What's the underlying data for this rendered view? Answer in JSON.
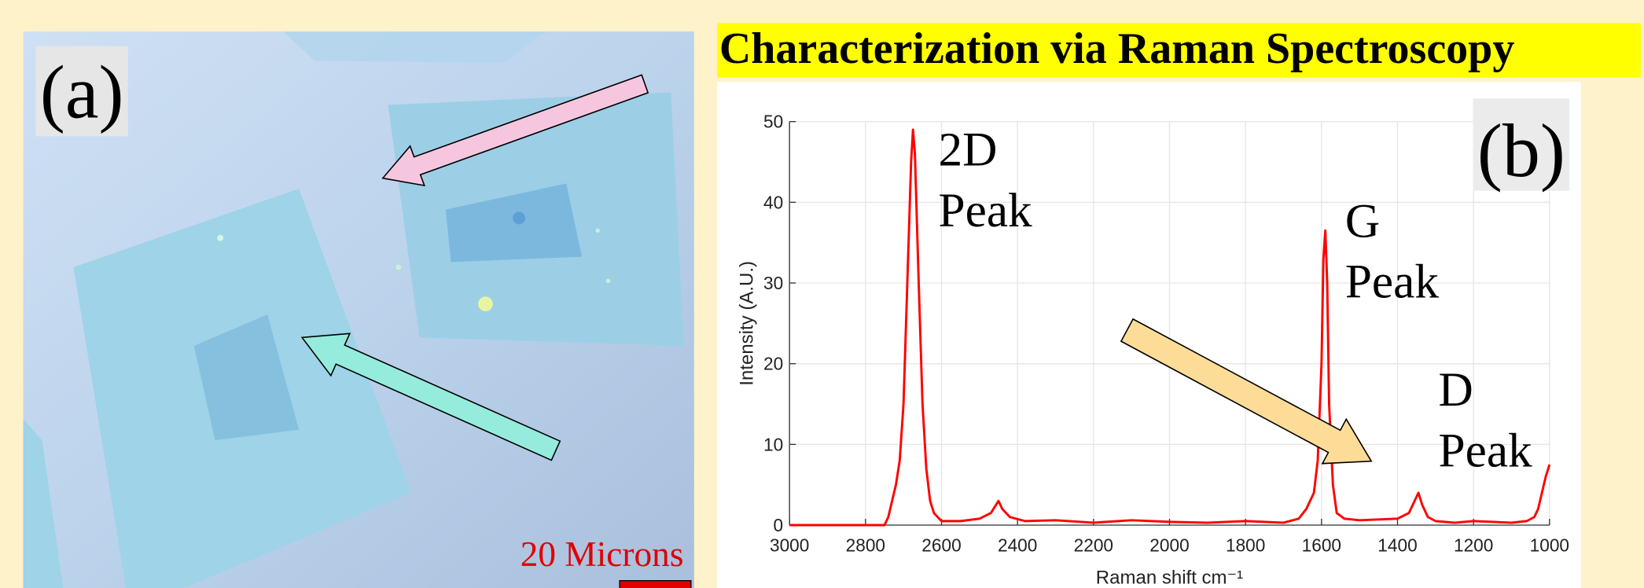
{
  "panel_a": {
    "label": "(a)",
    "scale_label": "20 Microns"
  },
  "chart_data": {
    "type": "line",
    "title": "Characterization via Raman Spectroscopy",
    "panel_label": "(b)",
    "xlabel": "Raman shift cm⁻¹",
    "ylabel": "Intensity (A.U.)",
    "annotations": [
      [
        "2D",
        "Peak"
      ],
      [
        "G",
        "Peak"
      ],
      [
        "D",
        "Peak"
      ]
    ],
    "color": "#ff0000",
    "grid": true,
    "xlim": [
      3000,
      1000
    ],
    "ylim": [
      0,
      50
    ],
    "xticks": [
      3000,
      2800,
      2600,
      2400,
      2200,
      2000,
      1800,
      1600,
      1400,
      1200,
      1000
    ],
    "yticks": [
      0,
      10,
      20,
      30,
      40,
      50
    ],
    "x": [
      3000,
      2900,
      2800,
      2750,
      2740,
      2720,
      2710,
      2700,
      2690,
      2680,
      2675,
      2670,
      2660,
      2650,
      2640,
      2630,
      2620,
      2600,
      2550,
      2500,
      2470,
      2450,
      2440,
      2420,
      2380,
      2300,
      2200,
      2100,
      2000,
      1900,
      1800,
      1700,
      1660,
      1640,
      1620,
      1610,
      1600,
      1595,
      1590,
      1585,
      1580,
      1570,
      1560,
      1540,
      1500,
      1400,
      1370,
      1355,
      1345,
      1335,
      1320,
      1300,
      1250,
      1200,
      1100,
      1060,
      1040,
      1030,
      1020,
      1010,
      1000
    ],
    "values": [
      0,
      0,
      0,
      0,
      1,
      5,
      8,
      15,
      30,
      45,
      49,
      46,
      30,
      15,
      7,
      3,
      1.5,
      0.5,
      0.5,
      0.8,
      1.5,
      3,
      2,
      1,
      0.5,
      0.6,
      0.3,
      0.6,
      0.4,
      0.3,
      0.5,
      0.3,
      0.8,
      2,
      4,
      8,
      20,
      33,
      36.5,
      30,
      15,
      5,
      1.5,
      0.8,
      0.6,
      0.8,
      1.5,
      3,
      4,
      2.5,
      1,
      0.5,
      0.3,
      0.5,
      0.3,
      0.5,
      1,
      2,
      4,
      6,
      7.5
    ]
  }
}
